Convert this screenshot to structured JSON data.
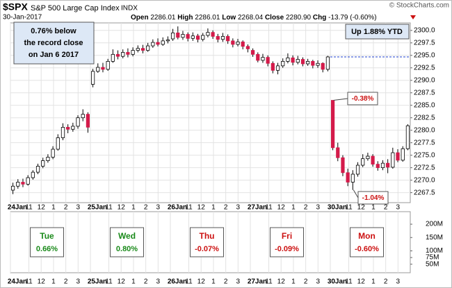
{
  "chart_data": {
    "type": "candlestick",
    "symbol": "$SPX",
    "name": "S&P 500 Large Cap Index",
    "exchange": "INDX",
    "date": "30-Jan-2017",
    "copyright": "© StockCharts.com",
    "quote": [
      "Open",
      "2286.01",
      "High",
      "2286.01",
      "Low",
      "2268.04",
      "Close",
      "2280.90",
      "Chg",
      "-13.79 (-0.60%)"
    ],
    "up_color": "#ffffff",
    "down_color": "#d41b4a",
    "ylim": [
      2265.5,
      2301.5
    ],
    "yticks": [
      2267.5,
      {
        "value": 2270,
        "label": "2270.0"
      },
      2272.5,
      {
        "value": 2275,
        "label": "2275.0"
      },
      2277.5,
      {
        "value": 2280,
        "label": "2280.0"
      },
      2282.5,
      {
        "value": 2285,
        "label": "2285.0"
      },
      2287.5,
      {
        "value": 2290,
        "label": "2290.0"
      },
      2292.5,
      {
        "value": 2295,
        "label": "2295.0"
      },
      2297.5,
      {
        "value": 2300,
        "label": "2300.0"
      }
    ],
    "xlim": [
      0,
      80
    ],
    "xticks": [
      {
        "value": 0,
        "label": "24Jan"
      },
      {
        "value": 3.69,
        "label": "11"
      },
      {
        "value": 6.15,
        "label": "12"
      },
      {
        "value": 8.62,
        "label": "1"
      },
      {
        "value": 11.08,
        "label": "2"
      },
      {
        "value": 13.54,
        "label": "3"
      },
      {
        "value": 16,
        "label": "25Jan"
      },
      {
        "value": 19.69,
        "label": "11"
      },
      {
        "value": 22.15,
        "label": "12"
      },
      {
        "value": 24.62,
        "label": "1"
      },
      {
        "value": 27.08,
        "label": "2"
      },
      {
        "value": 29.54,
        "label": "3"
      },
      {
        "value": 32,
        "label": "26Jan"
      },
      {
        "value": 35.69,
        "label": "11"
      },
      {
        "value": 38.15,
        "label": "12"
      },
      {
        "value": 40.62,
        "label": "1"
      },
      {
        "value": 43.08,
        "label": "2"
      },
      {
        "value": 45.54,
        "label": "3"
      },
      {
        "value": 48,
        "label": "27Jan"
      },
      {
        "value": 51.69,
        "label": "11"
      },
      {
        "value": 54.15,
        "label": "12"
      },
      {
        "value": 56.62,
        "label": "1"
      },
      {
        "value": 59.08,
        "label": "2"
      },
      {
        "value": 61.54,
        "label": "3"
      },
      {
        "value": 64,
        "label": "30Jan"
      },
      {
        "value": 67.69,
        "label": "11"
      },
      {
        "value": 70.15,
        "label": "12"
      },
      {
        "value": 72.62,
        "label": "1"
      },
      {
        "value": 75.08,
        "label": "2"
      },
      {
        "value": 77.54,
        "label": "3"
      }
    ],
    "grid": true,
    "open": [
      2268.0,
      2268.8,
      2269.6,
      2269.2,
      2270.5,
      2271.6,
      2272.8,
      2273.9,
      2274.6,
      2276.2,
      2278.5,
      2280.6,
      2280.2,
      2280.8,
      2282.5,
      2283.2,
      2289.2,
      2291.8,
      2292.6,
      2292.2,
      2293.8,
      2295.2,
      2294.8,
      2295.6,
      2295.2,
      2296.0,
      2296.4,
      2296.0,
      2296.9,
      2297.6,
      2297.2,
      2297.9,
      2298.3,
      2299.5,
      2298.6,
      2299.2,
      2298.4,
      2298.9,
      2298.2,
      2299.0,
      2299.6,
      2298.8,
      2298.2,
      2298.8,
      2297.9,
      2297.2,
      2297.7,
      2296.8,
      2296.0,
      2295.2,
      2294.0,
      2294.6,
      2293.4,
      2292.0,
      2292.9,
      2293.8,
      2294.5,
      2293.6,
      2294.2,
      2293.3,
      2293.8,
      2293.0,
      2293.4,
      2292.2,
      2286.0,
      2276.5,
      2274.5,
      2271.5,
      2269.6,
      2271.2,
      2273.0,
      2274.3,
      2274.8,
      2273.2,
      2272.5,
      2273.4,
      2272.6,
      2275.5,
      2274.0,
      2276.3
    ],
    "high": [
      2269.5,
      2270.2,
      2270.3,
      2271.0,
      2272.0,
      2273.3,
      2274.5,
      2275.2,
      2276.8,
      2279.2,
      2281.4,
      2281.2,
      2281.5,
      2283.0,
      2284.2,
      2283.6,
      2292.3,
      2293.4,
      2293.5,
      2294.3,
      2296.2,
      2296.0,
      2296.2,
      2296.4,
      2296.6,
      2297.0,
      2297.1,
      2297.5,
      2298.2,
      2298.4,
      2298.6,
      2298.8,
      2300.3,
      2300.8,
      2299.9,
      2299.6,
      2299.6,
      2299.3,
      2299.5,
      2300.4,
      2300.0,
      2299.3,
      2299.5,
      2299.2,
      2298.4,
      2298.3,
      2298.0,
      2297.2,
      2296.4,
      2295.6,
      2295.3,
      2295.0,
      2293.8,
      2293.5,
      2294.4,
      2295.4,
      2295.0,
      2294.9,
      2294.6,
      2294.3,
      2294.1,
      2294.0,
      2293.6,
      2294.9,
      2286.0,
      2277.5,
      2275.0,
      2272.3,
      2272.0,
      2273.6,
      2275.2,
      2275.5,
      2275.2,
      2273.8,
      2274.0,
      2274.2,
      2276.5,
      2276.2,
      2276.8,
      2281.2
    ],
    "low": [
      2267.2,
      2268.3,
      2268.6,
      2268.9,
      2270.1,
      2271.2,
      2272.4,
      2273.5,
      2274.2,
      2275.9,
      2278.0,
      2279.4,
      2279.7,
      2280.3,
      2281.8,
      2279.5,
      2288.6,
      2291.5,
      2291.6,
      2291.9,
      2293.5,
      2294.2,
      2294.4,
      2294.6,
      2294.8,
      2295.6,
      2295.4,
      2295.7,
      2296.5,
      2296.8,
      2296.9,
      2297.4,
      2297.9,
      2298.2,
      2298.1,
      2297.8,
      2297.9,
      2297.6,
      2297.8,
      2298.6,
      2298.3,
      2297.6,
      2297.7,
      2297.3,
      2296.6,
      2296.8,
      2296.2,
      2295.6,
      2294.7,
      2293.6,
      2293.5,
      2292.8,
      2291.4,
      2291.2,
      2292.5,
      2293.4,
      2293.0,
      2293.2,
      2292.8,
      2292.9,
      2292.4,
      2292.5,
      2291.6,
      2291.8,
      2276.0,
      2273.8,
      2270.8,
      2268.8,
      2268.04,
      2270.7,
      2272.6,
      2273.9,
      2272.7,
      2271.9,
      2272.0,
      2271.4,
      2272.3,
      2273.6,
      2273.7,
      2276.0
    ],
    "close": [
      2268.8,
      2269.6,
      2269.2,
      2270.5,
      2271.6,
      2272.8,
      2273.9,
      2274.6,
      2276.2,
      2278.5,
      2280.6,
      2280.2,
      2280.8,
      2282.5,
      2283.2,
      2280.6,
      2291.8,
      2292.6,
      2292.2,
      2293.8,
      2295.2,
      2294.8,
      2295.6,
      2295.2,
      2296.0,
      2296.4,
      2296.0,
      2296.9,
      2297.6,
      2297.2,
      2297.9,
      2298.1,
      2299.5,
      2298.6,
      2299.2,
      2298.4,
      2298.9,
      2298.2,
      2299.0,
      2299.6,
      2298.8,
      2298.2,
      2298.8,
      2297.9,
      2297.2,
      2297.7,
      2296.8,
      2296.3,
      2295.2,
      2294.0,
      2294.6,
      2293.4,
      2292.0,
      2292.9,
      2293.8,
      2294.5,
      2293.6,
      2294.2,
      2293.3,
      2293.8,
      2293.0,
      2293.4,
      2292.2,
      2294.69,
      2276.5,
      2274.5,
      2271.5,
      2269.6,
      2271.2,
      2273.0,
      2274.3,
      2274.8,
      2273.2,
      2272.5,
      2273.4,
      2272.6,
      2275.5,
      2274.0,
      2276.3,
      2280.9
    ],
    "reference_line": 2294.69,
    "reference_color": "#1f3fcf",
    "note_box": [
      "0.76% below",
      "the record close",
      "on Jan 6 2017"
    ],
    "ytd_box": "Up 1.88% YTD",
    "callouts": [
      {
        "text": "-0.38%",
        "candle": 64
      },
      {
        "text": "-1.04%",
        "candle": 68
      }
    ],
    "volume_ylim": [
      18,
      247
    ],
    "volume_ticks": [
      {
        "value": 200,
        "label": "200M"
      },
      {
        "value": 150,
        "label": "150M"
      },
      {
        "value": 100,
        "label": "100M"
      },
      {
        "value": 75,
        "label": "75M"
      },
      {
        "value": 50,
        "label": "50M"
      }
    ],
    "day_changes": [
      {
        "day": "Tue",
        "change": "0.66%",
        "color": "#1a8a1a"
      },
      {
        "day": "Wed",
        "change": "0.80%",
        "color": "#1a8a1a"
      },
      {
        "day": "Thu",
        "change": "-0.07%",
        "color": "#cc1111"
      },
      {
        "day": "Fri",
        "change": "-0.09%",
        "color": "#cc1111"
      },
      {
        "day": "Mon",
        "change": "-0.60%",
        "color": "#cc1111"
      }
    ]
  }
}
